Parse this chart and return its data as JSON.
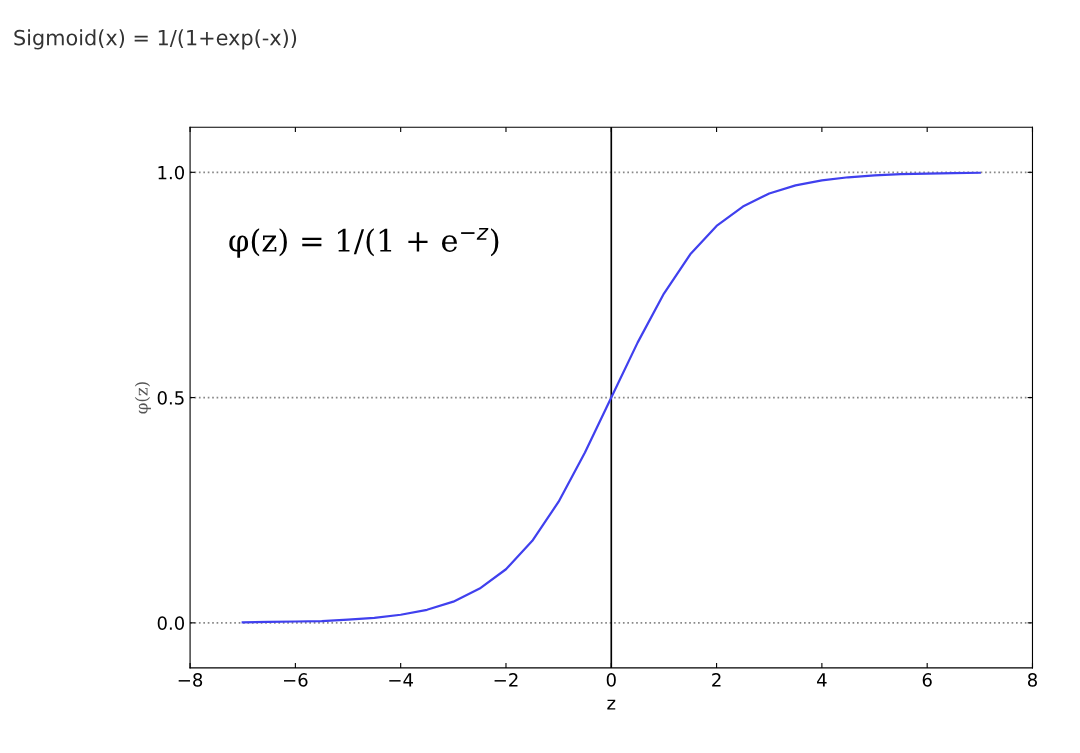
{
  "chart_data": {
    "type": "line",
    "title": "Sigmoid(x) = 1/(1+exp(-x))",
    "xlabel": "z",
    "ylabel": "φ(z)",
    "annotations": [
      "φ(z) = 1/(1 + e$^{−z}$)"
    ],
    "x": [
      -7,
      -6.5,
      -6,
      -5.5,
      -5,
      -4.5,
      -4,
      -3.5,
      -3,
      -2.5,
      -2,
      -1.5,
      -1,
      -0.5,
      0,
      0.5,
      1,
      1.5,
      2,
      2.5,
      3,
      3.5,
      4,
      4.5,
      5,
      5.5,
      6,
      6.5,
      7
    ],
    "series": [
      {
        "color": "#4040ee",
        "values": [
          0.001,
          0.002,
          0.003,
          0.004,
          0.007,
          0.011,
          0.018,
          0.029,
          0.047,
          0.076,
          0.119,
          0.182,
          0.269,
          0.378,
          0.5,
          0.622,
          0.731,
          0.818,
          0.881,
          0.924,
          0.953,
          0.971,
          0.982,
          0.989,
          0.993,
          0.996,
          0.997,
          0.998,
          0.999
        ]
      }
    ],
    "xlim": [
      -8,
      8
    ],
    "ylim": [
      -0.1,
      1.1
    ],
    "xticks": [
      {
        "value": -8,
        "label": "−8"
      },
      {
        "value": -6,
        "label": "−6"
      },
      {
        "value": -4,
        "label": "−4"
      },
      {
        "value": -2,
        "label": "−2"
      },
      0,
      2,
      4,
      6,
      8
    ],
    "yticks": [
      {
        "value": 0,
        "label": "0.0"
      },
      {
        "value": 0.5,
        "label": "0.5"
      },
      {
        "value": 1,
        "label": "1.0"
      }
    ],
    "ref_lines": [
      {
        "axis": "x",
        "value": 0,
        "color": "#000000",
        "line_style": "solid"
      }
    ],
    "grid": "y",
    "marker": "none",
    "line_style": "solid"
  }
}
